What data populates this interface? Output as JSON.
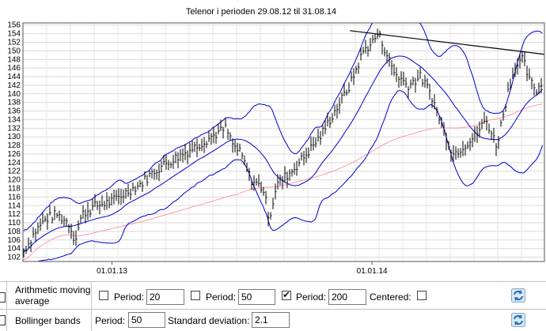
{
  "chart_data": {
    "type": "line",
    "title": "Telenor i perioden 29.08.12 til 31.08.14",
    "x_ticks": [
      "01.01.13",
      "01.01.14"
    ],
    "y_ticks": [
      102,
      104,
      106,
      108,
      110,
      112,
      114,
      116,
      118,
      120,
      122,
      124,
      126,
      128,
      130,
      132,
      134,
      136,
      138,
      140,
      142,
      144,
      146,
      148,
      150,
      152,
      154,
      156
    ],
    "ylim": [
      101,
      156.5
    ],
    "grid": true,
    "price_path": [
      [
        "29.08.12",
        103
      ],
      [
        "15.09.12",
        108
      ],
      [
        "01.10.12",
        111
      ],
      [
        "15.10.12",
        112
      ],
      [
        "01.11.12",
        110
      ],
      [
        "10.11.12",
        106
      ],
      [
        "20.11.12",
        112
      ],
      [
        "10.12.12",
        114
      ],
      [
        "01.01.13",
        115
      ],
      [
        "20.01.13",
        117
      ],
      [
        "10.02.13",
        119
      ],
      [
        "01.03.13",
        122
      ],
      [
        "20.03.13",
        124
      ],
      [
        "10.04.13",
        126
      ],
      [
        "01.05.13",
        128
      ],
      [
        "20.05.13",
        130
      ],
      [
        "10.06.13",
        132
      ],
      [
        "20.06.13",
        128
      ],
      [
        "01.07.13",
        126
      ],
      [
        "15.07.13",
        120
      ],
      [
        "01.08.13",
        118
      ],
      [
        "10.08.13",
        111
      ],
      [
        "20.08.13",
        119
      ],
      [
        "10.09.13",
        122
      ],
      [
        "01.10.13",
        126
      ],
      [
        "20.10.13",
        130
      ],
      [
        "10.11.13",
        136
      ],
      [
        "01.12.13",
        142
      ],
      [
        "20.12.13",
        150
      ],
      [
        "01.01.14",
        152
      ],
      [
        "10.01.14",
        154
      ],
      [
        "20.01.14",
        150
      ],
      [
        "01.02.14",
        145
      ],
      [
        "20.02.14",
        142
      ],
      [
        "10.03.14",
        144
      ],
      [
        "25.03.14",
        140
      ],
      [
        "10.04.14",
        132
      ],
      [
        "25.04.14",
        126
      ],
      [
        "10.05.14",
        128
      ],
      [
        "25.05.14",
        130
      ],
      [
        "10.06.14",
        134
      ],
      [
        "25.06.14",
        128
      ],
      [
        "10.07.14",
        140
      ],
      [
        "20.07.14",
        146
      ],
      [
        "01.08.14",
        148
      ],
      [
        "10.08.14",
        143
      ],
      [
        "20.08.14",
        141
      ],
      [
        "31.08.14",
        143
      ]
    ],
    "series": [
      {
        "name": "Bollinger upper",
        "color": "#0000cc"
      },
      {
        "name": "Bollinger middle",
        "color": "#0000cc"
      },
      {
        "name": "Bollinger lower",
        "color": "#0000cc"
      },
      {
        "name": "Moving average 200",
        "color": "#ff9aa8"
      },
      {
        "name": "Trend line",
        "color": "#000000"
      }
    ]
  },
  "controls": {
    "ma_label": "Arithmetic moving average",
    "period_label": "Period:",
    "ma_period_1": "20",
    "ma_period_2": "50",
    "ma_period_3": "200",
    "ma_checked": [
      false,
      false,
      true
    ],
    "centered_label": "Centered:",
    "bb_label": "Bollinger bands",
    "bb_period": "50",
    "std_label": "Standard deviation:",
    "bb_std": "2.1",
    "refresh_icon": "refresh-icon"
  }
}
